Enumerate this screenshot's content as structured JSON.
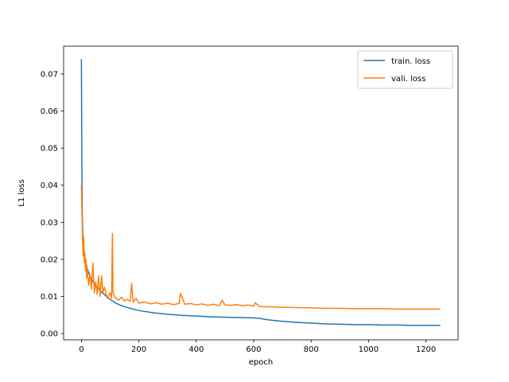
{
  "chart_data": {
    "type": "line",
    "xlabel": "epoch",
    "ylabel": "L1 loss",
    "xlim": [
      -62,
      1312
    ],
    "ylim": [
      -0.0017,
      0.0775
    ],
    "xticks": [
      0,
      200,
      400,
      600,
      800,
      1000,
      1200
    ],
    "xtick_labels": [
      "0",
      "200",
      "400",
      "600",
      "800",
      "1000",
      "1200"
    ],
    "yticks": [
      0.0,
      0.01,
      0.02,
      0.03,
      0.04,
      0.05,
      0.06,
      0.07
    ],
    "ytick_labels": [
      "0.00",
      "0.01",
      "0.02",
      "0.03",
      "0.04",
      "0.05",
      "0.06",
      "0.07"
    ],
    "grid": false,
    "legend_position": "top-right",
    "series": [
      {
        "name": "train. loss",
        "color": "#1f77b4",
        "x": [
          0,
          1,
          2,
          3,
          5,
          8,
          12,
          16,
          20,
          25,
          30,
          40,
          50,
          60,
          70,
          80,
          90,
          100,
          110,
          120,
          140,
          160,
          180,
          200,
          250,
          300,
          350,
          400,
          450,
          500,
          550,
          600,
          620,
          650,
          700,
          750,
          800,
          850,
          900,
          950,
          1000,
          1050,
          1100,
          1150,
          1200,
          1250
        ],
        "y": [
          0.074,
          0.055,
          0.04,
          0.032,
          0.026,
          0.023,
          0.02,
          0.019,
          0.0175,
          0.0165,
          0.0155,
          0.014,
          0.013,
          0.012,
          0.0112,
          0.0105,
          0.0098,
          0.0092,
          0.0087,
          0.0082,
          0.0075,
          0.007,
          0.0066,
          0.0062,
          0.0056,
          0.0052,
          0.0049,
          0.0047,
          0.0045,
          0.0044,
          0.0043,
          0.0042,
          0.0041,
          0.0037,
          0.0033,
          0.003,
          0.0028,
          0.0026,
          0.0025,
          0.0024,
          0.0024,
          0.0023,
          0.0023,
          0.0022,
          0.0022,
          0.0022
        ]
      },
      {
        "name": "vali. loss",
        "color": "#ff7f0e",
        "x": [
          0,
          2,
          4,
          6,
          8,
          10,
          12,
          14,
          16,
          18,
          20,
          25,
          30,
          35,
          40,
          45,
          50,
          55,
          60,
          65,
          70,
          75,
          80,
          90,
          100,
          105,
          108,
          110,
          115,
          120,
          130,
          140,
          150,
          160,
          170,
          175,
          180,
          190,
          200,
          220,
          240,
          260,
          280,
          300,
          320,
          340,
          345,
          360,
          380,
          400,
          420,
          440,
          460,
          480,
          490,
          500,
          520,
          540,
          560,
          580,
          600,
          605,
          620,
          640,
          660,
          680,
          700,
          750,
          800,
          850,
          900,
          950,
          1000,
          1050,
          1100,
          1150,
          1200,
          1250
        ],
        "y": [
          0.04,
          0.032,
          0.025,
          0.021,
          0.026,
          0.019,
          0.022,
          0.017,
          0.02,
          0.015,
          0.018,
          0.013,
          0.016,
          0.012,
          0.019,
          0.011,
          0.014,
          0.0105,
          0.0155,
          0.01,
          0.0155,
          0.011,
          0.0125,
          0.0095,
          0.011,
          0.0095,
          0.027,
          0.011,
          0.01,
          0.0095,
          0.009,
          0.0098,
          0.0088,
          0.0092,
          0.0087,
          0.0135,
          0.0085,
          0.0095,
          0.0082,
          0.0085,
          0.008,
          0.0083,
          0.0079,
          0.0082,
          0.0078,
          0.0081,
          0.0108,
          0.0079,
          0.0081,
          0.0077,
          0.008,
          0.0076,
          0.0079,
          0.0075,
          0.009,
          0.0077,
          0.0076,
          0.0078,
          0.0075,
          0.0077,
          0.0074,
          0.0083,
          0.0073,
          0.0072,
          0.0072,
          0.0071,
          0.0071,
          0.007,
          0.0069,
          0.0068,
          0.0068,
          0.0067,
          0.0067,
          0.0067,
          0.0066,
          0.0066,
          0.0066,
          0.0066
        ]
      }
    ]
  }
}
